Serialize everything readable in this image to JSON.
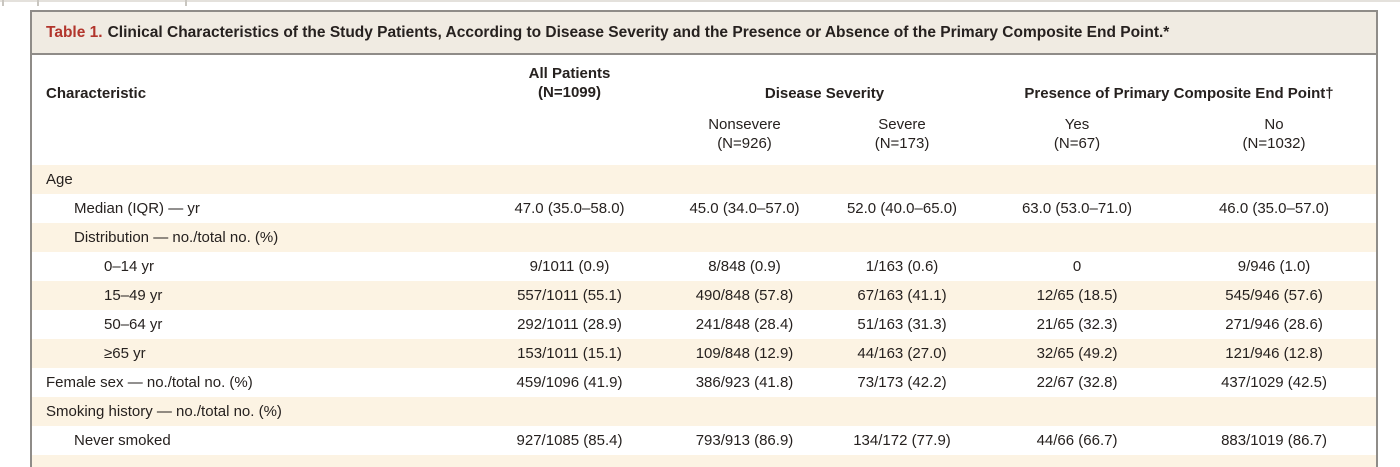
{
  "colors": {
    "accent_red": "#b2352c",
    "title_band_bg": "#f0ebe2",
    "row_shade": "#fcf3e3",
    "table_border": "#8f8c88",
    "text": "#26211f"
  },
  "table": {
    "title_label": "Table 1.",
    "title_text": "Clinical Characteristics of the Study Patients, According to Disease Severity and the Presence or Absence of the Primary Composite End Point.*",
    "header": {
      "characteristic": "Characteristic",
      "all_patients": {
        "line1": "All Patients",
        "line2": "(N=1099)"
      },
      "groups": [
        {
          "label": "Disease Severity",
          "subcols": [
            {
              "line1": "Nonsevere",
              "line2": "(N=926)"
            },
            {
              "line1": "Severe",
              "line2": "(N=173)"
            }
          ]
        },
        {
          "label": "Presence of Primary Composite End Point†",
          "subcols": [
            {
              "line1": "Yes",
              "line2": "(N=67)"
            },
            {
              "line1": "No",
              "line2": "(N=1032)"
            }
          ]
        }
      ]
    },
    "rows": [
      {
        "label": "Age",
        "level": 0,
        "shaded": true
      },
      {
        "label": "Median (IQR) — yr",
        "level": 1,
        "shaded": false,
        "values": [
          "47.0 (35.0–58.0)",
          "45.0 (34.0–57.0)",
          "52.0 (40.0–65.0)",
          "63.0 (53.0–71.0)",
          "46.0 (35.0–57.0)"
        ]
      },
      {
        "label": "Distribution — no./total no. (%)",
        "level": 1,
        "shaded": true
      },
      {
        "label": "0–14 yr",
        "level": 2,
        "shaded": false,
        "values": [
          "9/1011 (0.9)",
          "8/848 (0.9)",
          "1/163 (0.6)",
          "0",
          "9/946 (1.0)"
        ]
      },
      {
        "label": "15–49 yr",
        "level": 2,
        "shaded": true,
        "values": [
          "557/1011 (55.1)",
          "490/848 (57.8)",
          "67/163 (41.1)",
          "12/65 (18.5)",
          "545/946 (57.6)"
        ]
      },
      {
        "label": "50–64 yr",
        "level": 2,
        "shaded": false,
        "values": [
          "292/1011 (28.9)",
          "241/848 (28.4)",
          "51/163 (31.3)",
          "21/65 (32.3)",
          "271/946 (28.6)"
        ]
      },
      {
        "label": "≥65 yr",
        "level": 2,
        "shaded": true,
        "values": [
          "153/1011 (15.1)",
          "109/848 (12.9)",
          "44/163 (27.0)",
          "32/65 (49.2)",
          "121/946 (12.8)"
        ]
      },
      {
        "label": "Female sex — no./total no. (%)",
        "level": 0,
        "shaded": false,
        "values": [
          "459/1096 (41.9)",
          "386/923 (41.8)",
          "73/173 (42.2)",
          "22/67 (32.8)",
          "437/1029 (42.5)"
        ]
      },
      {
        "label": "Smoking history — no./total no. (%)",
        "level": 0,
        "shaded": true
      },
      {
        "label": "Never smoked",
        "level": 1,
        "shaded": false,
        "values": [
          "927/1085 (85.4)",
          "793/913 (86.9)",
          "134/172 (77.9)",
          "44/66 (66.7)",
          "883/1019 (86.7)"
        ]
      },
      {
        "label": "",
        "level": 0,
        "shaded": true
      }
    ]
  }
}
